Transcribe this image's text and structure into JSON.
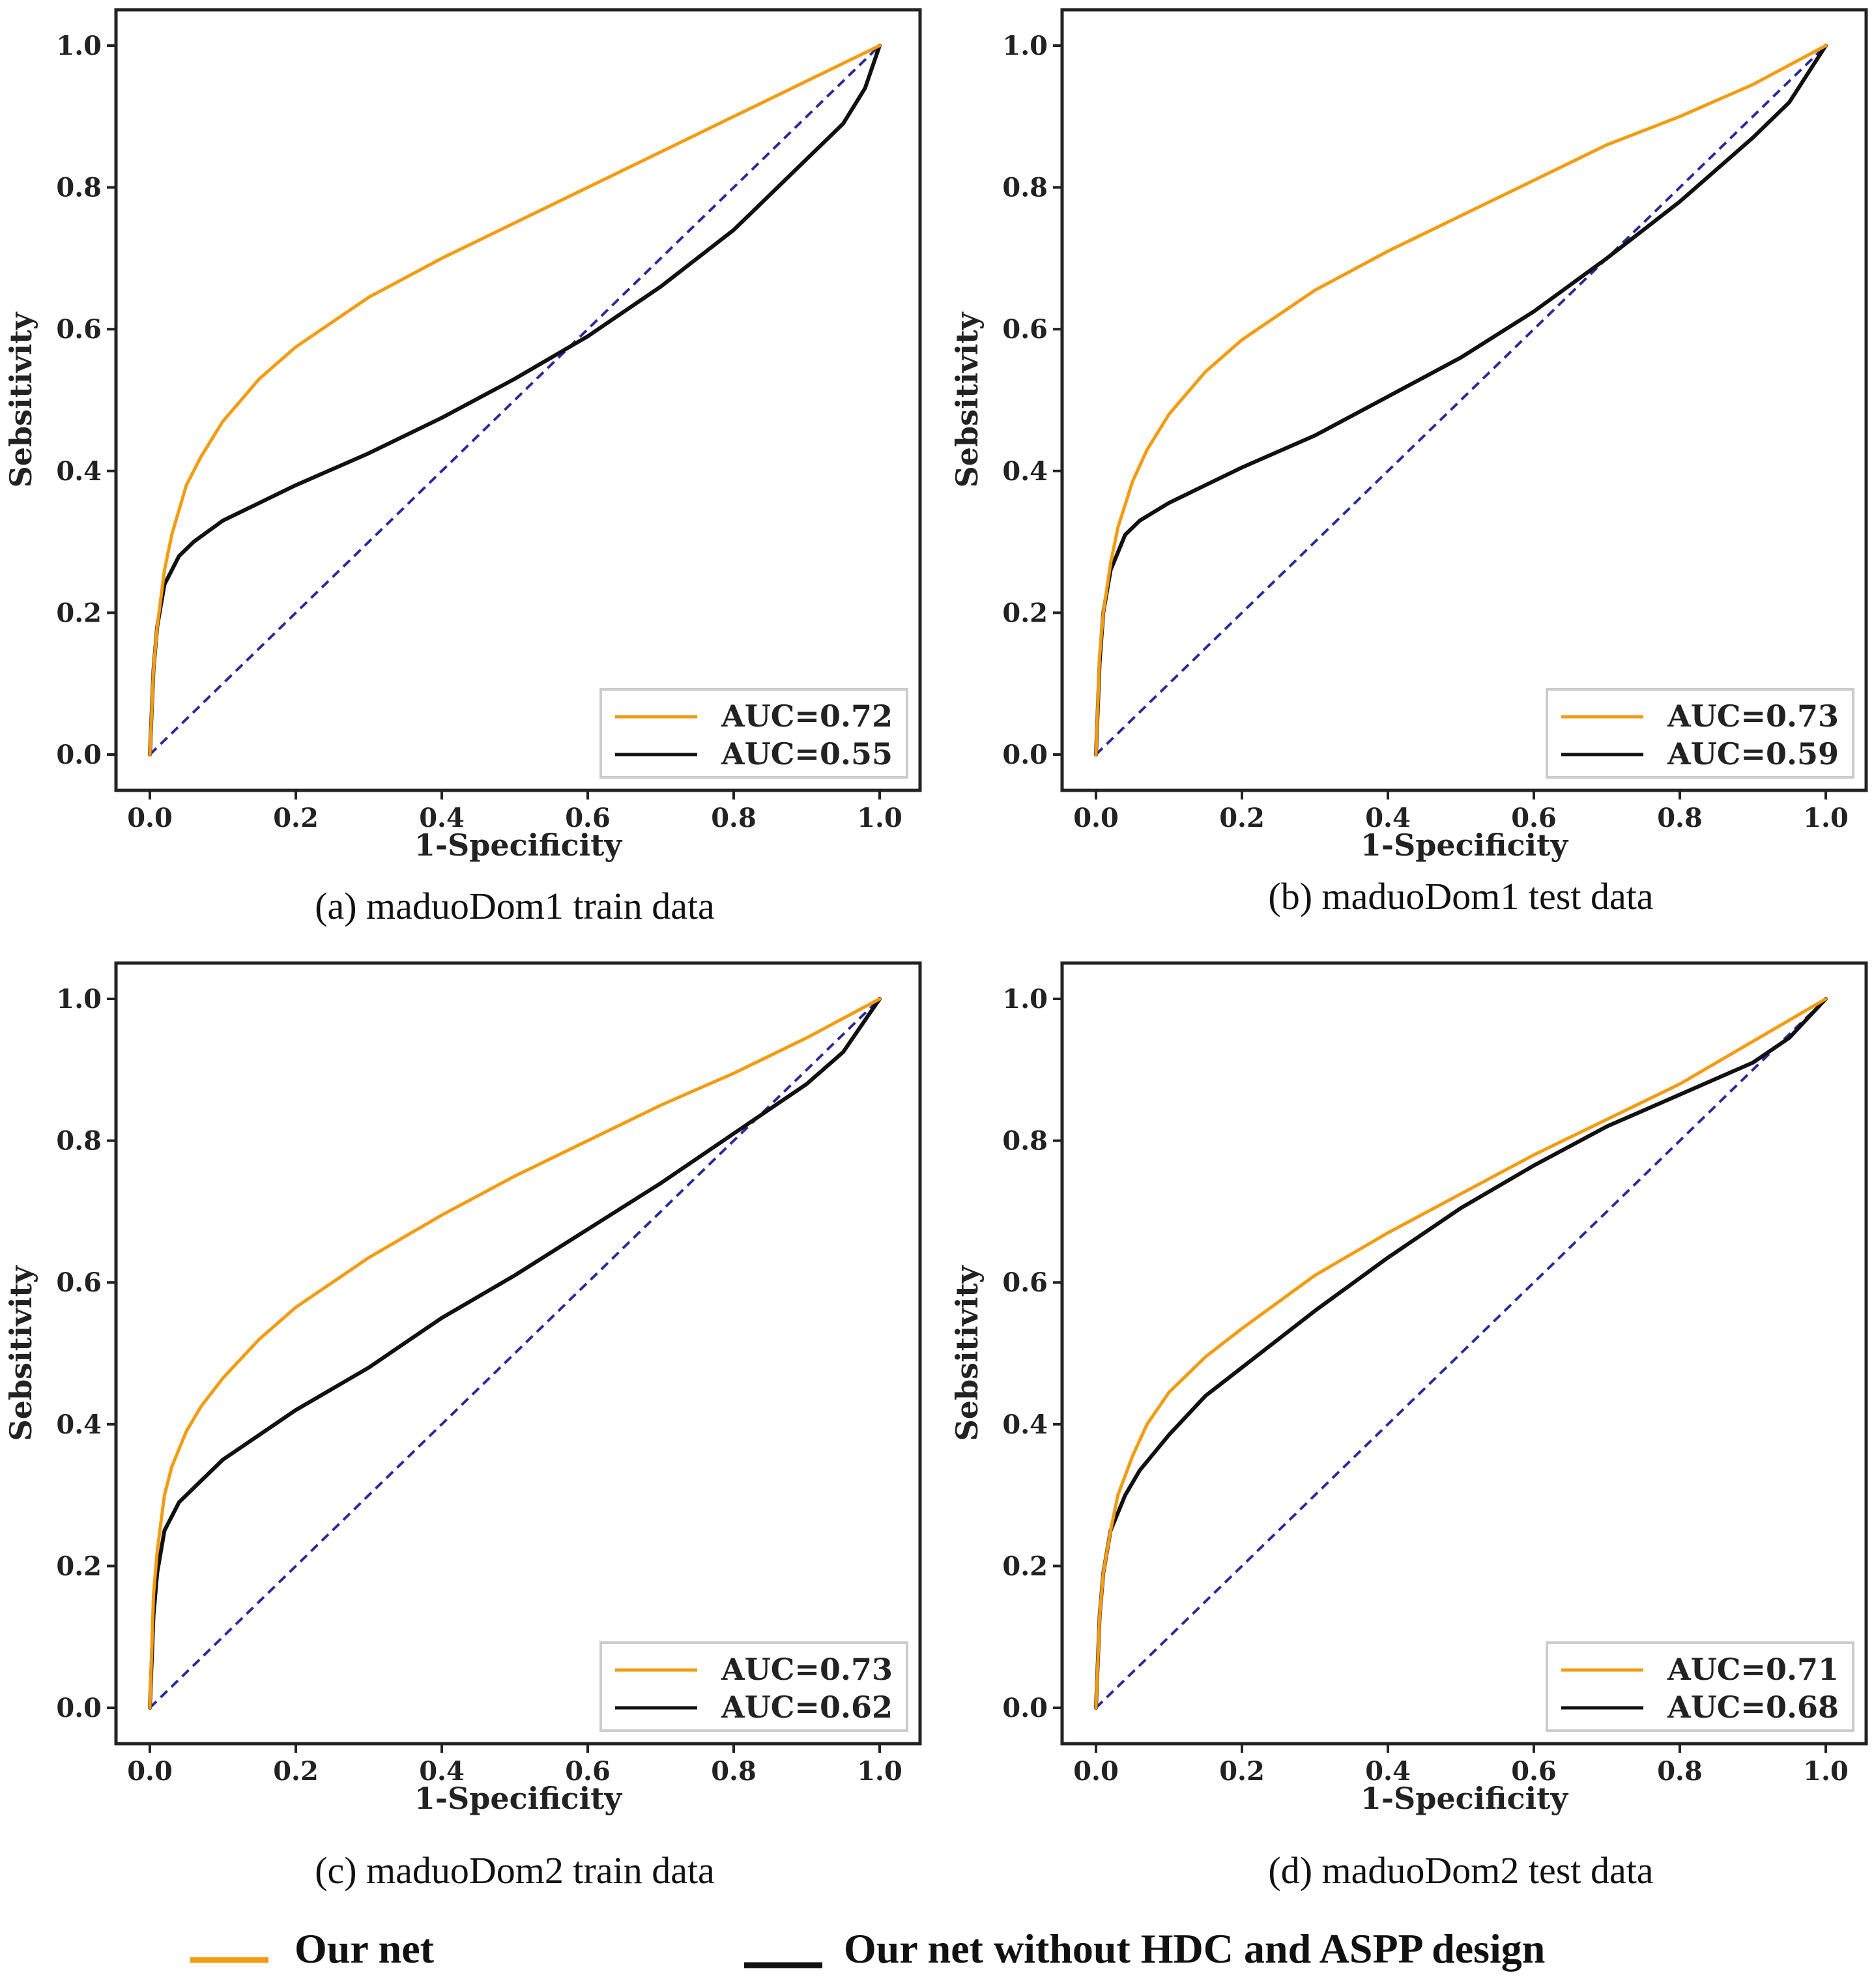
{
  "colors": {
    "our_net": "#f39c12",
    "without": "#111111",
    "diagonal": "#2a2a9c",
    "frame": "#222222"
  },
  "legend": {
    "our_net": "Our net",
    "without": "Our net without HDC and ASPP design"
  },
  "chart_data": [
    {
      "type": "line",
      "caption": "(a) maduoDom1 train data",
      "xlabel": "1-Specificity",
      "ylabel": "Sebsitivity",
      "xlim": [
        0,
        1
      ],
      "ylim": [
        0,
        1
      ],
      "xticks": [
        "0.0",
        "0.2",
        "0.4",
        "0.6",
        "0.8",
        "1.0"
      ],
      "yticks": [
        "0.0",
        "0.2",
        "0.4",
        "0.6",
        "0.8",
        "1.0"
      ],
      "legend_position": "bottom-right",
      "series": [
        {
          "name": "AUC=0.72",
          "x": [
            0,
            0.005,
            0.01,
            0.02,
            0.03,
            0.05,
            0.07,
            0.1,
            0.15,
            0.2,
            0.3,
            0.4,
            0.5,
            0.6,
            0.7,
            0.8,
            0.9,
            1.0
          ],
          "y": [
            0,
            0.12,
            0.18,
            0.26,
            0.31,
            0.38,
            0.42,
            0.47,
            0.53,
            0.575,
            0.645,
            0.7,
            0.75,
            0.8,
            0.85,
            0.9,
            0.95,
            1.0
          ]
        },
        {
          "name": "AUC=0.55",
          "x": [
            0,
            0.005,
            0.01,
            0.02,
            0.04,
            0.06,
            0.1,
            0.15,
            0.2,
            0.3,
            0.4,
            0.5,
            0.6,
            0.7,
            0.8,
            0.9,
            0.95,
            0.98,
            1.0
          ],
          "y": [
            0,
            0.12,
            0.18,
            0.24,
            0.28,
            0.3,
            0.33,
            0.355,
            0.38,
            0.425,
            0.475,
            0.53,
            0.59,
            0.66,
            0.74,
            0.84,
            0.89,
            0.94,
            1.0
          ]
        }
      ]
    },
    {
      "type": "line",
      "caption": "(b) maduoDom1 test data",
      "xlabel": "1-Specificity",
      "ylabel": "Sebsitivity",
      "xlim": [
        0,
        1
      ],
      "ylim": [
        0,
        1
      ],
      "xticks": [
        "0.0",
        "0.2",
        "0.4",
        "0.6",
        "0.8",
        "1.0"
      ],
      "yticks": [
        "0.0",
        "0.2",
        "0.4",
        "0.6",
        "0.8",
        "1.0"
      ],
      "legend_position": "bottom-right",
      "series": [
        {
          "name": "AUC=0.73",
          "x": [
            0,
            0.005,
            0.01,
            0.02,
            0.03,
            0.05,
            0.07,
            0.1,
            0.15,
            0.2,
            0.3,
            0.4,
            0.5,
            0.6,
            0.7,
            0.8,
            0.9,
            1.0
          ],
          "y": [
            0,
            0.14,
            0.2,
            0.27,
            0.32,
            0.385,
            0.43,
            0.48,
            0.54,
            0.585,
            0.655,
            0.71,
            0.76,
            0.81,
            0.86,
            0.9,
            0.945,
            1.0
          ]
        },
        {
          "name": "AUC=0.59",
          "x": [
            0,
            0.005,
            0.01,
            0.02,
            0.04,
            0.06,
            0.1,
            0.15,
            0.2,
            0.3,
            0.4,
            0.5,
            0.6,
            0.7,
            0.8,
            0.9,
            0.95,
            1.0
          ],
          "y": [
            0,
            0.13,
            0.2,
            0.26,
            0.31,
            0.33,
            0.355,
            0.38,
            0.405,
            0.45,
            0.505,
            0.56,
            0.625,
            0.7,
            0.78,
            0.87,
            0.92,
            1.0
          ]
        }
      ]
    },
    {
      "type": "line",
      "caption": "(c) maduoDom2 train data",
      "xlabel": "1-Specificity",
      "ylabel": "Sebsitivity",
      "xlim": [
        0,
        1
      ],
      "ylim": [
        0,
        1
      ],
      "xticks": [
        "0.0",
        "0.2",
        "0.4",
        "0.6",
        "0.8",
        "1.0"
      ],
      "yticks": [
        "0.0",
        "0.2",
        "0.4",
        "0.6",
        "0.8",
        "1.0"
      ],
      "legend_position": "bottom-right",
      "series": [
        {
          "name": "AUC=0.73",
          "x": [
            0,
            0.005,
            0.01,
            0.02,
            0.03,
            0.05,
            0.07,
            0.1,
            0.15,
            0.2,
            0.3,
            0.4,
            0.5,
            0.6,
            0.7,
            0.8,
            0.9,
            1.0
          ],
          "y": [
            0,
            0.16,
            0.22,
            0.3,
            0.34,
            0.39,
            0.425,
            0.465,
            0.52,
            0.565,
            0.635,
            0.695,
            0.75,
            0.8,
            0.85,
            0.895,
            0.945,
            1.0
          ]
        },
        {
          "name": "AUC=0.62",
          "x": [
            0,
            0.005,
            0.01,
            0.02,
            0.04,
            0.06,
            0.1,
            0.15,
            0.2,
            0.3,
            0.4,
            0.5,
            0.6,
            0.7,
            0.8,
            0.9,
            0.95,
            1.0
          ],
          "y": [
            0,
            0.13,
            0.19,
            0.25,
            0.29,
            0.31,
            0.35,
            0.385,
            0.42,
            0.48,
            0.55,
            0.61,
            0.675,
            0.74,
            0.81,
            0.88,
            0.925,
            1.0
          ]
        }
      ]
    },
    {
      "type": "line",
      "caption": "(d) maduoDom2 test data",
      "xlabel": "1-Specificity",
      "ylabel": "Sebsitivity",
      "xlim": [
        0,
        1
      ],
      "ylim": [
        0,
        1
      ],
      "xticks": [
        "0.0",
        "0.2",
        "0.4",
        "0.6",
        "0.8",
        "1.0"
      ],
      "yticks": [
        "0.0",
        "0.2",
        "0.4",
        "0.6",
        "0.8",
        "1.0"
      ],
      "legend_position": "bottom-right",
      "series": [
        {
          "name": "AUC=0.71",
          "x": [
            0,
            0.005,
            0.01,
            0.02,
            0.03,
            0.05,
            0.07,
            0.1,
            0.15,
            0.2,
            0.3,
            0.4,
            0.5,
            0.6,
            0.7,
            0.8,
            0.9,
            1.0
          ],
          "y": [
            0,
            0.13,
            0.19,
            0.25,
            0.3,
            0.355,
            0.4,
            0.445,
            0.495,
            0.535,
            0.61,
            0.67,
            0.725,
            0.78,
            0.83,
            0.88,
            0.94,
            1.0
          ]
        },
        {
          "name": "AUC=0.68",
          "x": [
            0,
            0.005,
            0.01,
            0.02,
            0.04,
            0.06,
            0.1,
            0.15,
            0.2,
            0.3,
            0.4,
            0.5,
            0.6,
            0.7,
            0.8,
            0.9,
            0.95,
            1.0
          ],
          "y": [
            0,
            0.13,
            0.19,
            0.25,
            0.3,
            0.335,
            0.385,
            0.44,
            0.48,
            0.56,
            0.635,
            0.705,
            0.765,
            0.82,
            0.865,
            0.91,
            0.945,
            1.0
          ]
        }
      ]
    }
  ]
}
